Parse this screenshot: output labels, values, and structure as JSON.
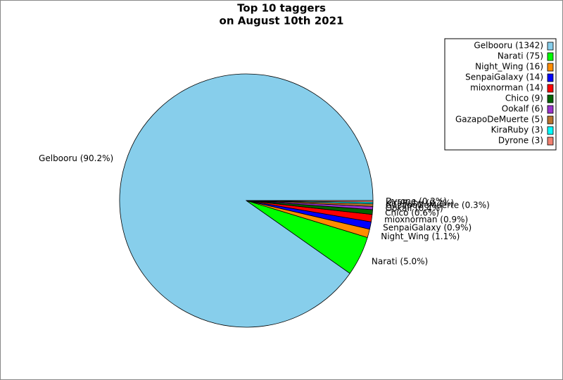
{
  "chart_data": {
    "type": "pie",
    "title": [
      "Top 10 taggers",
      "on August 10th 2021"
    ],
    "categories": [
      "Gelbooru",
      "Narati",
      "Night_Wing",
      "SenpaiGalaxy",
      "mioxnorman",
      "Chico",
      "Ookalf",
      "GazapoDeMuerte",
      "KiraRuby",
      "Dyrone"
    ],
    "values": [
      1342,
      75,
      16,
      14,
      14,
      9,
      6,
      5,
      3,
      3
    ],
    "slice_labels": [
      "Gelbooru (90.2%)",
      "Narati (5.0%)",
      "Night_Wing (1.1%)",
      "SenpaiGalaxy (0.9%)",
      "mioxnorman (0.9%)",
      "Chico (0.6%)",
      "Ookalf (0.4%)",
      "GazapoDeMuerte (0.3%)",
      "KiraRuby (0.2%)",
      "Dyrone (0.2%)"
    ],
    "legend_labels": [
      "Gelbooru (1342)",
      "Narati (75)",
      "Night_Wing (16)",
      "SenpaiGalaxy (14)",
      "mioxnorman (14)",
      "Chico (9)",
      "Ookalf (6)",
      "GazapoDeMuerte (5)",
      "KiraRuby (3)",
      "Dyrone (3)"
    ],
    "colors": [
      "#87ceeb",
      "#00ff00",
      "#ff8c00",
      "#0000ff",
      "#ff0000",
      "#006400",
      "#9932cc",
      "#b8732e",
      "#00ffff",
      "#f08070"
    ],
    "legend": "upper right"
  }
}
